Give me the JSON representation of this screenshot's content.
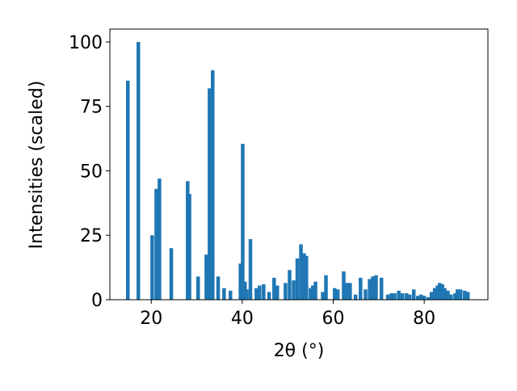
{
  "chart_data": {
    "type": "bar",
    "xlabel": "2θ (°)",
    "ylabel": "Intensities (scaled)",
    "x": [
      14.85,
      17.16,
      20.2,
      21.1,
      21.8,
      24.4,
      28.0,
      28.4,
      30.3,
      32.1,
      32.8,
      33.5,
      34.7,
      36.0,
      37.4,
      39.6,
      40.1,
      40.6,
      41.0,
      41.8,
      43.1,
      43.8,
      44.7,
      45.9,
      47.0,
      47.7,
      49.5,
      50.4,
      51.3,
      52.1,
      52.9,
      53.6,
      54.1,
      55.0,
      55.5,
      56.1,
      57.7,
      58.4,
      60.3,
      61.0,
      62.3,
      63.0,
      63.7,
      64.9,
      66.0,
      67.1,
      68.0,
      68.7,
      69.4,
      70.6,
      72.0,
      72.8,
      73.5,
      74.4,
      75.2,
      76.1,
      76.8,
      77.7,
      78.6,
      79.3,
      80.0,
      80.9,
      81.6,
      82.3,
      82.9,
      83.4,
      84.0,
      84.5,
      85.2,
      85.9,
      86.8,
      87.3,
      88.0,
      88.9,
      89.6
    ],
    "values": [
      85,
      100,
      25,
      43,
      47,
      20,
      46,
      41,
      9,
      17.5,
      82,
      89,
      9,
      4.5,
      3.5,
      14,
      60.5,
      7,
      4,
      23.5,
      4.5,
      5.5,
      6,
      3,
      8.5,
      5.5,
      6.5,
      11.5,
      7.5,
      16,
      21.5,
      18,
      17,
      4.5,
      5.5,
      7,
      3,
      9.5,
      4.5,
      4,
      11,
      6.5,
      6.5,
      2,
      8.5,
      4,
      8,
      9,
      9.5,
      8.5,
      2,
      2.5,
      2.5,
      3.5,
      2.5,
      2.5,
      2,
      4,
      1.5,
      2,
      1.5,
      1,
      3,
      4.5,
      5.5,
      6.5,
      6,
      4.5,
      3.5,
      2,
      2.5,
      4,
      4,
      3.5,
      3
    ],
    "color": "#1f77b4",
    "xlim": [
      10.9,
      94.0
    ],
    "ylim": [
      0,
      105
    ],
    "xticks": [
      20,
      40,
      60,
      80
    ],
    "yticks": [
      0,
      25,
      50,
      75,
      100
    ],
    "grid": false
  }
}
